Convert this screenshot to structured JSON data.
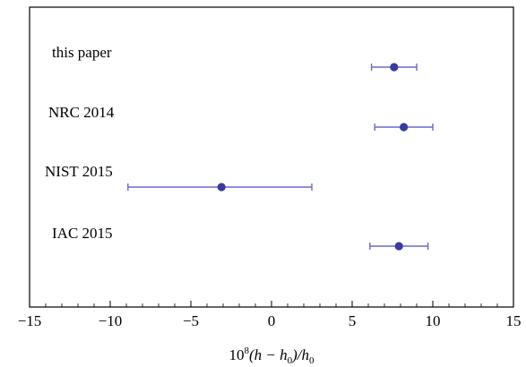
{
  "chart_data": {
    "type": "scatter",
    "subtype": "forest-plot-with-horizontal-error-bars",
    "xlabel": {
      "prefix": "10",
      "exponent": "8",
      "body": "(h − h",
      "sub1": "0",
      "mid": ")/h",
      "sub2": "0"
    },
    "ylabel": "",
    "xlim": [
      -15,
      15
    ],
    "xticks": [
      -15,
      -10,
      -5,
      0,
      5,
      10,
      15
    ],
    "xtick_labels": [
      "−15",
      "−10",
      "−5",
      "0",
      "5",
      "10",
      "15"
    ],
    "grid": false,
    "marker_color": "#3a3aa0",
    "errorbar_color": "#6a6ac8",
    "points": [
      {
        "label": "this paper",
        "value": 7.6,
        "err_low": 6.2,
        "err_high": 9.0
      },
      {
        "label": "NRC 2014",
        "value": 8.2,
        "err_low": 6.4,
        "err_high": 10.0
      },
      {
        "label": "NIST 2015",
        "value": -3.1,
        "err_low": -8.9,
        "err_high": 2.5
      },
      {
        "label": "IAC 2015",
        "value": 7.9,
        "err_low": 6.1,
        "err_high": 9.7
      }
    ]
  }
}
